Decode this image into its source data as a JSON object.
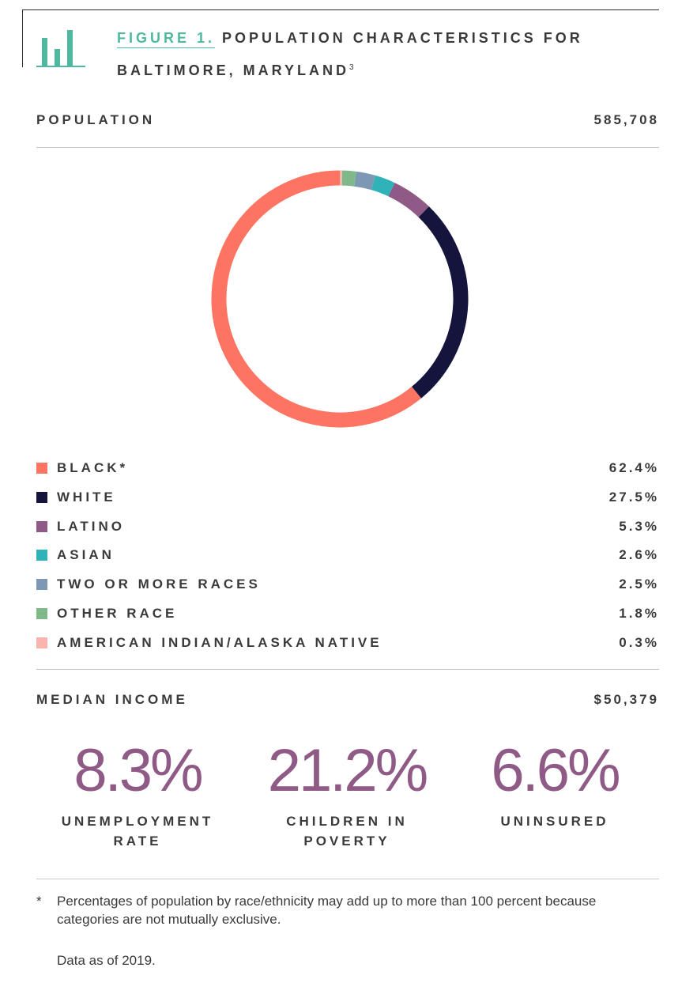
{
  "figure": {
    "number": "FIGURE 1.",
    "title_line1": "POPULATION CHARACTERISTICS FOR",
    "title_line2": "BALTIMORE, MARYLAND",
    "superscript": "3",
    "icon": "bar-chart-icon",
    "accent_color": "#4fb99f"
  },
  "population": {
    "label": "POPULATION",
    "value": "585,708"
  },
  "chart_data": {
    "type": "pie",
    "style": "donut",
    "categories": [
      "BLACK*",
      "WHITE",
      "LATINO",
      "ASIAN",
      "TWO OR MORE RACES",
      "OTHER RACE",
      "AMERICAN INDIAN/ALASKA NATIVE"
    ],
    "values": [
      62.4,
      27.5,
      5.3,
      2.6,
      2.5,
      1.8,
      0.3
    ],
    "value_labels": [
      "62.4%",
      "27.5%",
      "5.3%",
      "2.6%",
      "2.5%",
      "1.8%",
      "0.3%"
    ],
    "colors": [
      "#fd7462",
      "#14143d",
      "#8f5a85",
      "#2fb2b8",
      "#7d98b5",
      "#7fb889",
      "#f9b5ad"
    ],
    "legend_position": "below"
  },
  "median_income": {
    "label": "MEDIAN INCOME",
    "value": "$50,379"
  },
  "stats": [
    {
      "value": "8.3%",
      "label_line1": "UNEMPLOYMENT",
      "label_line2": "RATE"
    },
    {
      "value": "21.2%",
      "label_line1": "CHILDREN IN",
      "label_line2": "POVERTY"
    },
    {
      "value": "6.6%",
      "label_line1": "UNINSURED",
      "label_line2": ""
    }
  ],
  "stat_color": "#8f5a85",
  "footnote": {
    "mark": "*",
    "text": "Percentages of population by race/ethnicity may add up to more than 100 percent because categories are not mutually exclusive."
  },
  "data_as_of": "Data as of 2019."
}
